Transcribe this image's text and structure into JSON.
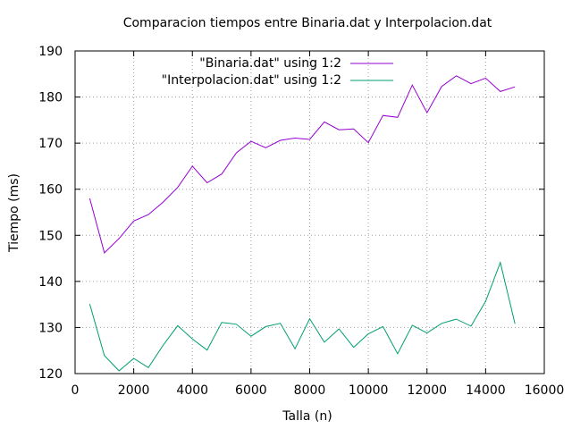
{
  "chart_data": {
    "type": "line",
    "title": "Comparacion tiempos entre Binaria.dat y Interpolacion.dat",
    "xlabel": "Talla (n)",
    "ylabel": "Tiempo (ms)",
    "xlim": [
      0,
      16000
    ],
    "ylim": [
      120,
      190
    ],
    "xticks": [
      0,
      2000,
      4000,
      6000,
      8000,
      10000,
      12000,
      14000,
      16000
    ],
    "yticks": [
      120,
      130,
      140,
      150,
      160,
      170,
      180,
      190
    ],
    "grid": true,
    "legend_position": "top-right",
    "x": [
      500,
      1000,
      1500,
      2000,
      2500,
      3000,
      3500,
      4000,
      4500,
      5000,
      5500,
      6000,
      6500,
      7000,
      7500,
      8000,
      8500,
      9000,
      9500,
      10000,
      10500,
      11000,
      11500,
      12000,
      12500,
      13000,
      13500,
      14000,
      14500,
      15000
    ],
    "series": [
      {
        "name": "\"Binaria.dat\" using 1:2",
        "color": "#9400d3",
        "values": [
          158,
          146.2,
          149.3,
          153.1,
          154.5,
          157.2,
          160.4,
          165,
          161.4,
          163.3,
          167.9,
          170.4,
          169,
          170.6,
          171.1,
          170.8,
          174.6,
          172.9,
          173.1,
          170.1,
          176,
          175.6,
          182.6,
          176.6,
          182.3,
          184.6,
          182.9,
          184.1,
          181.2,
          182.2
        ]
      },
      {
        "name": "\"Interpolacion.dat\" using 1:2",
        "color": "#009e73",
        "values": [
          135.1,
          123.9,
          120.6,
          123.3,
          121.3,
          126.1,
          130.4,
          127.5,
          125.1,
          131.1,
          130.7,
          128.1,
          130.2,
          130.9,
          125.4,
          131.9,
          126.8,
          129.7,
          125.7,
          128.6,
          130.2,
          124.3,
          130.5,
          128.8,
          130.9,
          131.8,
          130.3,
          135.7,
          144.1,
          130.8
        ]
      }
    ]
  }
}
